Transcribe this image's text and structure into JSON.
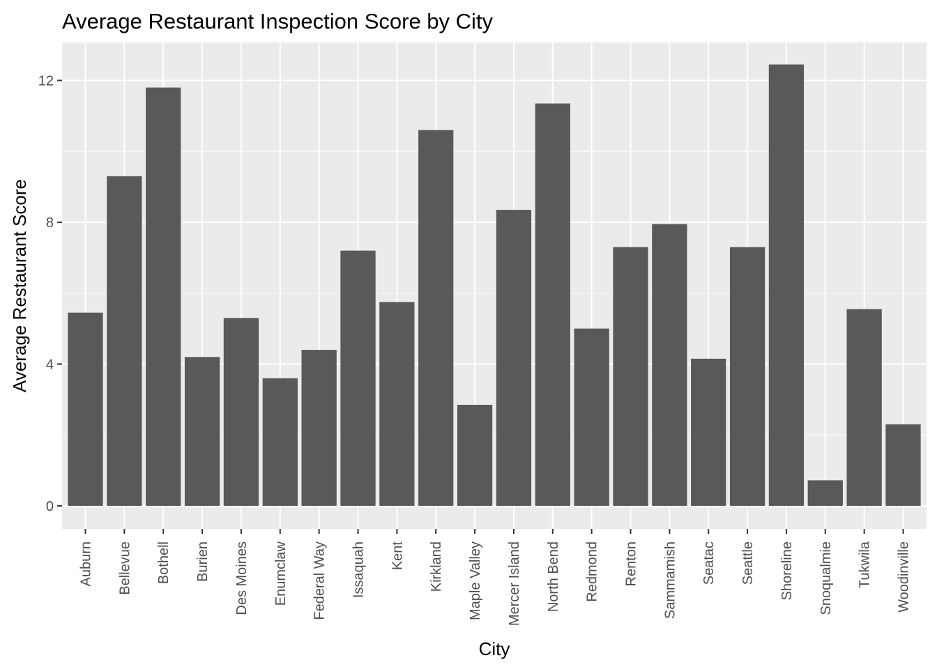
{
  "chart_data": {
    "type": "bar",
    "title": "Average Restaurant Inspection Score by City",
    "xlabel": "City",
    "ylabel": "Average Restaurant Score",
    "categories": [
      "Auburn",
      "Bellevue",
      "Bothell",
      "Burien",
      "Des Moines",
      "Enumclaw",
      "Federal Way",
      "Issaquah",
      "Kent",
      "Kirkland",
      "Maple Valley",
      "Mercer Island",
      "North Bend",
      "Redmond",
      "Renton",
      "Sammamish",
      "Seatac",
      "Seattle",
      "Shoreline",
      "Snoqualmie",
      "Tukwila",
      "Woodinville"
    ],
    "values": [
      5.45,
      9.3,
      11.8,
      4.2,
      5.3,
      3.6,
      4.4,
      7.2,
      5.75,
      10.6,
      2.85,
      8.35,
      11.35,
      5.0,
      7.3,
      7.95,
      4.15,
      7.3,
      12.45,
      0.72,
      5.55,
      2.3
    ],
    "ylim": [
      -0.65,
      13.07
    ],
    "yticks": [
      0,
      4,
      8,
      12
    ],
    "grid": true,
    "background": "#ebebeb",
    "bar_color": "#595959"
  }
}
